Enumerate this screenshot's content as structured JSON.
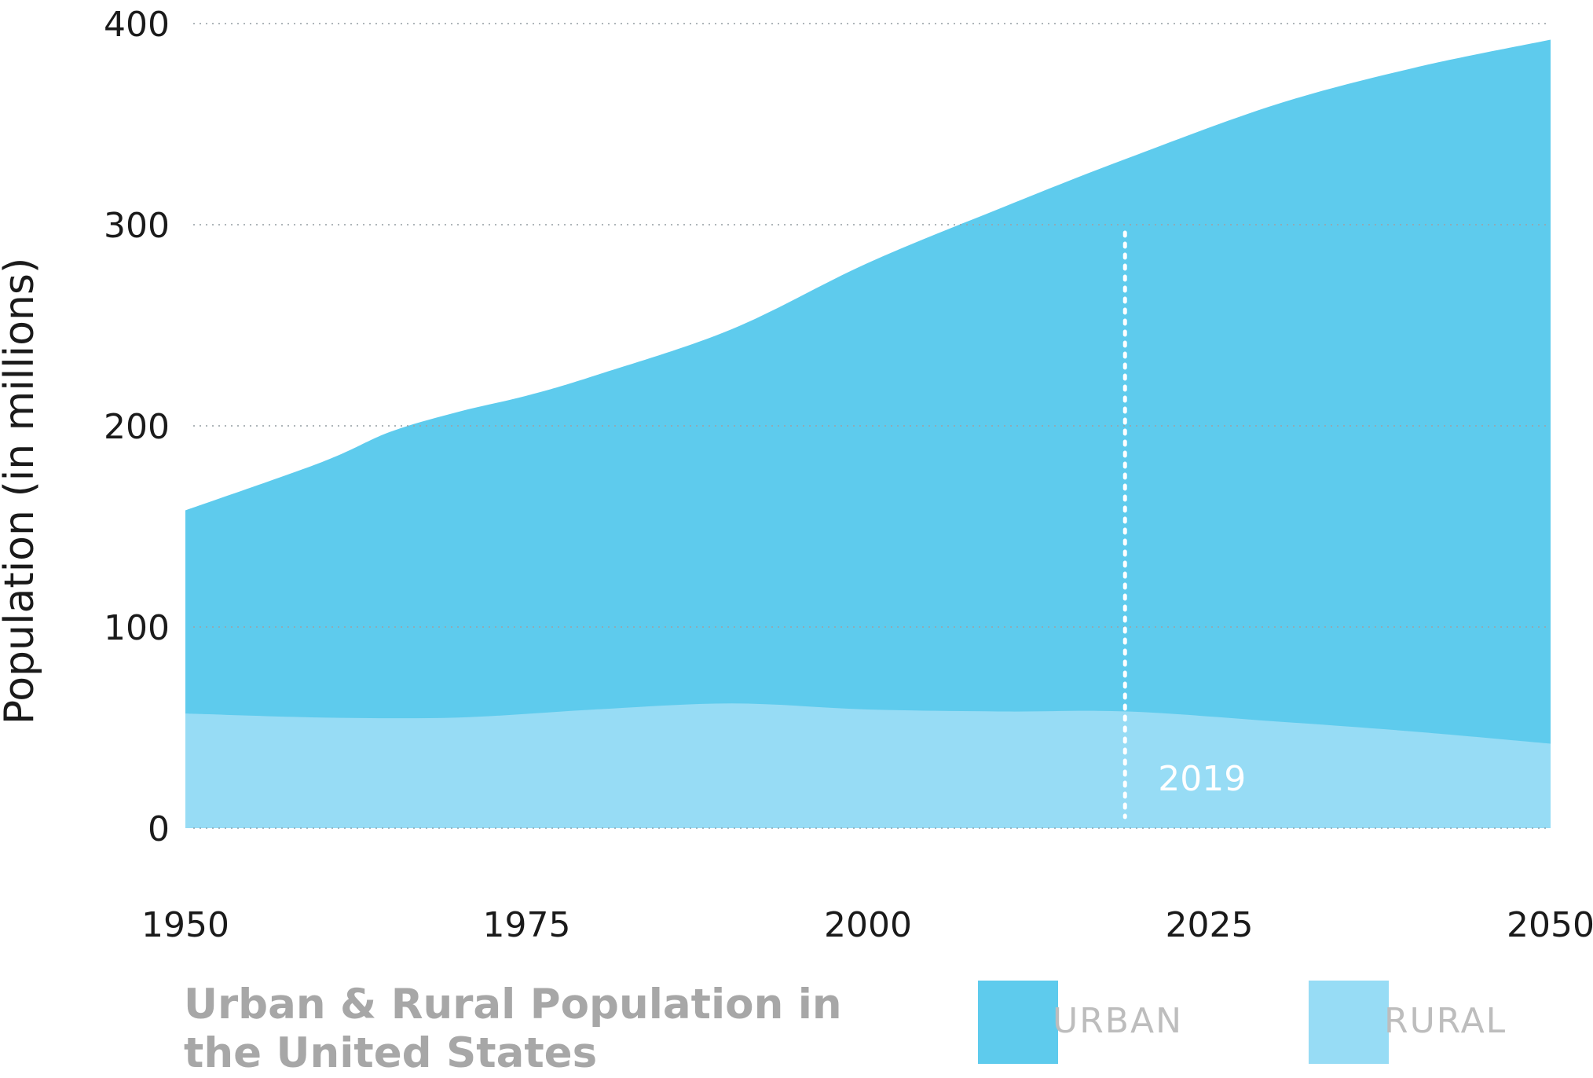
{
  "chart_data": {
    "type": "area",
    "stacked": true,
    "title": "Urban & Rural Population in the United States",
    "ylabel": "Population (in millions)",
    "xlabel": "",
    "xlim": [
      1950,
      2050
    ],
    "ylim": [
      0,
      400
    ],
    "x_ticks": [
      1950,
      1975,
      2000,
      2025,
      2050
    ],
    "y_ticks": [
      0,
      100,
      200,
      300,
      400
    ],
    "grid": "horizontal-dotted",
    "legend_position": "bottom-right",
    "series": [
      {
        "name": "RURAL",
        "color": "#97dcf5",
        "points": [
          [
            1950,
            57
          ],
          [
            1960,
            55
          ],
          [
            1970,
            55
          ],
          [
            1980,
            59
          ],
          [
            1990,
            62
          ],
          [
            2000,
            59
          ],
          [
            2010,
            58
          ],
          [
            2019,
            58
          ],
          [
            2030,
            53
          ],
          [
            2040,
            48
          ],
          [
            2050,
            42
          ]
        ]
      },
      {
        "name": "URBAN",
        "color": "#5ecbed",
        "total_points": [
          [
            1950,
            158
          ],
          [
            1960,
            182
          ],
          [
            1965,
            197
          ],
          [
            1970,
            207
          ],
          [
            1975,
            215
          ],
          [
            1980,
            225
          ],
          [
            1990,
            248
          ],
          [
            2000,
            281
          ],
          [
            2010,
            309
          ],
          [
            2019,
            333
          ],
          [
            2030,
            360
          ],
          [
            2040,
            378
          ],
          [
            2050,
            392
          ]
        ]
      }
    ],
    "annotations": [
      {
        "x": 2019,
        "label": "2019",
        "style": "dotted-vertical-line"
      }
    ]
  },
  "legend": {
    "urban_label": "URBAN",
    "rural_label": "RURAL",
    "urban_color": "#5ecbed",
    "rural_color": "#97dcf5"
  }
}
